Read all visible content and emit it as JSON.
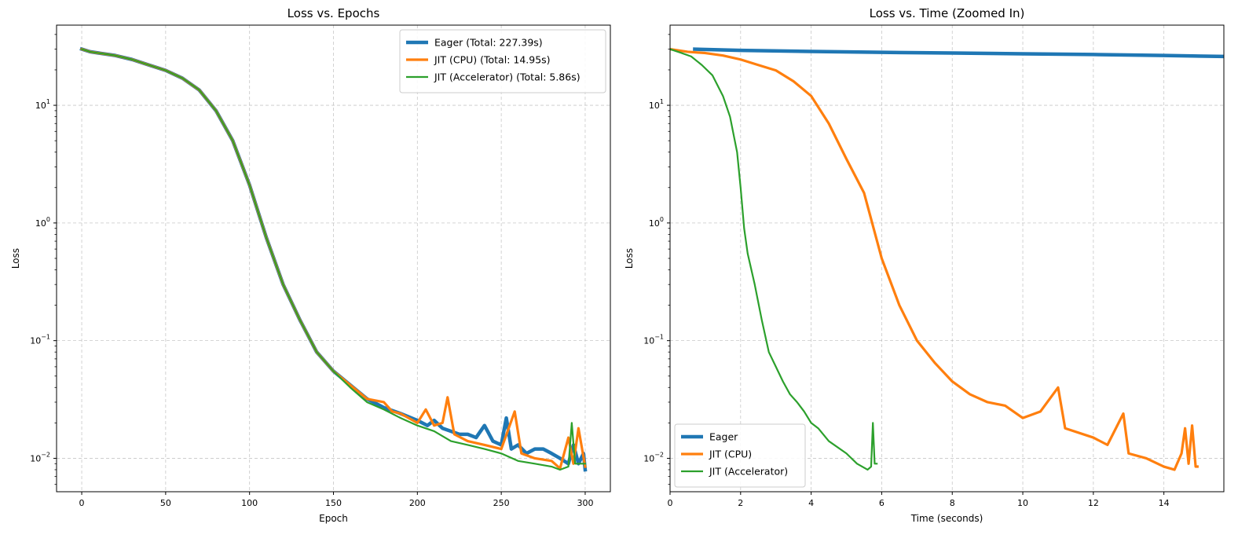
{
  "chart_data": [
    {
      "type": "line",
      "title": "Loss vs. Epochs",
      "xlabel": "Epoch",
      "ylabel": "Loss",
      "xscale": "linear",
      "yscale": "log",
      "xlim": [
        -15,
        315
      ],
      "ylim": [
        0.0052,
        48
      ],
      "xticks": [
        0,
        50,
        100,
        150,
        200,
        250,
        300
      ],
      "yticks": [
        {
          "value": 10,
          "base": "10",
          "exp": "1"
        },
        {
          "value": 1,
          "base": "10",
          "exp": "0"
        },
        {
          "value": 0.1,
          "base": "10",
          "exp": "−1"
        },
        {
          "value": 0.01,
          "base": "10",
          "exp": "−2"
        }
      ],
      "grid": true,
      "legend_position": "top-right",
      "series": [
        {
          "name": "Eager (Total: 227.39s)",
          "color": "#1f77b4",
          "line_width": 4.5,
          "points": [
            [
              0,
              30
            ],
            [
              5,
              28.5
            ],
            [
              10,
              27.8
            ],
            [
              20,
              26.5
            ],
            [
              30,
              24.5
            ],
            [
              40,
              22
            ],
            [
              50,
              19.8
            ],
            [
              60,
              17
            ],
            [
              70,
              13.5
            ],
            [
              80,
              9
            ],
            [
              90,
              5
            ],
            [
              100,
              2.1
            ],
            [
              110,
              0.75
            ],
            [
              120,
              0.3
            ],
            [
              130,
              0.15
            ],
            [
              140,
              0.08
            ],
            [
              150,
              0.055
            ],
            [
              160,
              0.042
            ],
            [
              170,
              0.032
            ],
            [
              180,
              0.027
            ],
            [
              190,
              0.024
            ],
            [
              200,
              0.021
            ],
            [
              206,
              0.019
            ],
            [
              210,
              0.021
            ],
            [
              215,
              0.018
            ],
            [
              220,
              0.017
            ],
            [
              225,
              0.016
            ],
            [
              230,
              0.016
            ],
            [
              235,
              0.015
            ],
            [
              240,
              0.019
            ],
            [
              245,
              0.014
            ],
            [
              250,
              0.013
            ],
            [
              253,
              0.022
            ],
            [
              256,
              0.012
            ],
            [
              260,
              0.013
            ],
            [
              265,
              0.011
            ],
            [
              270,
              0.012
            ],
            [
              275,
              0.012
            ],
            [
              280,
              0.011
            ],
            [
              285,
              0.01
            ],
            [
              290,
              0.009
            ],
            [
              293,
              0.013
            ],
            [
              296,
              0.009
            ],
            [
              299,
              0.011
            ],
            [
              300,
              0.008
            ]
          ]
        },
        {
          "name": "JIT (CPU) (Total: 14.95s)",
          "color": "#ff7f0e",
          "line_width": 3.2,
          "points": [
            [
              0,
              30
            ],
            [
              5,
              28.5
            ],
            [
              10,
              27.8
            ],
            [
              20,
              26.5
            ],
            [
              30,
              24.5
            ],
            [
              40,
              22
            ],
            [
              50,
              19.8
            ],
            [
              60,
              17
            ],
            [
              70,
              13.5
            ],
            [
              80,
              9
            ],
            [
              90,
              5
            ],
            [
              100,
              2.1
            ],
            [
              110,
              0.75
            ],
            [
              120,
              0.3
            ],
            [
              130,
              0.15
            ],
            [
              140,
              0.08
            ],
            [
              150,
              0.055
            ],
            [
              160,
              0.042
            ],
            [
              170,
              0.032
            ],
            [
              180,
              0.03
            ],
            [
              185,
              0.025
            ],
            [
              190,
              0.024
            ],
            [
              200,
              0.02
            ],
            [
              205,
              0.026
            ],
            [
              210,
              0.019
            ],
            [
              215,
              0.02
            ],
            [
              218,
              0.033
            ],
            [
              222,
              0.016
            ],
            [
              230,
              0.014
            ],
            [
              240,
              0.013
            ],
            [
              250,
              0.012
            ],
            [
              258,
              0.025
            ],
            [
              262,
              0.011
            ],
            [
              270,
              0.01
            ],
            [
              280,
              0.0095
            ],
            [
              285,
              0.0082
            ],
            [
              290,
              0.015
            ],
            [
              293,
              0.009
            ],
            [
              296,
              0.018
            ],
            [
              300,
              0.0085
            ]
          ]
        },
        {
          "name": "JIT (Accelerator) (Total: 5.86s)",
          "color": "#2ca02c",
          "line_width": 2.2,
          "points": [
            [
              0,
              30
            ],
            [
              5,
              28.5
            ],
            [
              10,
              27.8
            ],
            [
              20,
              26.5
            ],
            [
              30,
              24.5
            ],
            [
              40,
              22
            ],
            [
              50,
              19.8
            ],
            [
              60,
              17
            ],
            [
              70,
              13.5
            ],
            [
              80,
              9
            ],
            [
              90,
              5
            ],
            [
              100,
              2.1
            ],
            [
              110,
              0.75
            ],
            [
              120,
              0.3
            ],
            [
              130,
              0.15
            ],
            [
              140,
              0.08
            ],
            [
              150,
              0.055
            ],
            [
              160,
              0.04
            ],
            [
              170,
              0.03
            ],
            [
              180,
              0.026
            ],
            [
              190,
              0.022
            ],
            [
              200,
              0.019
            ],
            [
              210,
              0.017
            ],
            [
              220,
              0.014
            ],
            [
              230,
              0.013
            ],
            [
              240,
              0.012
            ],
            [
              250,
              0.011
            ],
            [
              260,
              0.0095
            ],
            [
              270,
              0.009
            ],
            [
              280,
              0.0085
            ],
            [
              285,
              0.008
            ],
            [
              290,
              0.0085
            ],
            [
              292,
              0.02
            ],
            [
              294,
              0.009
            ],
            [
              300,
              0.009
            ]
          ]
        }
      ]
    },
    {
      "type": "line",
      "title": "Loss vs. Time (Zoomed In)",
      "xlabel": "Time (seconds)",
      "ylabel": "Loss",
      "xscale": "linear",
      "yscale": "log",
      "xlim": [
        0,
        15.7
      ],
      "ylim": [
        0.0052,
        48
      ],
      "xticks": [
        0,
        2,
        4,
        6,
        8,
        10,
        12,
        14
      ],
      "yticks": [
        {
          "value": 10,
          "base": "10",
          "exp": "1"
        },
        {
          "value": 1,
          "base": "10",
          "exp": "0"
        },
        {
          "value": 0.1,
          "base": "10",
          "exp": "−1"
        },
        {
          "value": 0.01,
          "base": "10",
          "exp": "−2"
        }
      ],
      "grid": true,
      "legend_position": "lower-left",
      "series": [
        {
          "name": "Eager",
          "color": "#1f77b4",
          "line_width": 4.5,
          "points": [
            [
              0.7,
              30
            ],
            [
              2,
              29.3
            ],
            [
              4,
              28.7
            ],
            [
              6,
              28.2
            ],
            [
              8,
              27.8
            ],
            [
              10,
              27.4
            ],
            [
              12,
              27
            ],
            [
              14,
              26.5
            ],
            [
              15.7,
              26
            ]
          ]
        },
        {
          "name": "JIT (CPU)",
          "color": "#ff7f0e",
          "line_width": 3.2,
          "points": [
            [
              0,
              30
            ],
            [
              0.5,
              28.5
            ],
            [
              1,
              27.8
            ],
            [
              1.5,
              26.5
            ],
            [
              2,
              24.5
            ],
            [
              2.5,
              22
            ],
            [
              3,
              19.8
            ],
            [
              3.5,
              16
            ],
            [
              4,
              12
            ],
            [
              4.5,
              7
            ],
            [
              5,
              3.5
            ],
            [
              5.5,
              1.8
            ],
            [
              6,
              0.5
            ],
            [
              6.5,
              0.2
            ],
            [
              7,
              0.1
            ],
            [
              7.5,
              0.065
            ],
            [
              8,
              0.045
            ],
            [
              8.5,
              0.035
            ],
            [
              9,
              0.03
            ],
            [
              9.5,
              0.028
            ],
            [
              10,
              0.022
            ],
            [
              10.5,
              0.025
            ],
            [
              11,
              0.04
            ],
            [
              11.2,
              0.018
            ],
            [
              12,
              0.015
            ],
            [
              12.4,
              0.013
            ],
            [
              12.85,
              0.024
            ],
            [
              13,
              0.011
            ],
            [
              13.5,
              0.01
            ],
            [
              14,
              0.0085
            ],
            [
              14.3,
              0.008
            ],
            [
              14.5,
              0.011
            ],
            [
              14.6,
              0.018
            ],
            [
              14.7,
              0.009
            ],
            [
              14.8,
              0.019
            ],
            [
              14.9,
              0.0085
            ],
            [
              14.95,
              0.0085
            ]
          ]
        },
        {
          "name": "JIT (Accelerator)",
          "color": "#2ca02c",
          "line_width": 2.2,
          "points": [
            [
              0,
              30
            ],
            [
              0.3,
              28
            ],
            [
              0.6,
              26
            ],
            [
              0.9,
              22
            ],
            [
              1.2,
              18
            ],
            [
              1.5,
              12
            ],
            [
              1.7,
              8
            ],
            [
              1.9,
              4
            ],
            [
              2,
              2
            ],
            [
              2.1,
              0.9
            ],
            [
              2.2,
              0.55
            ],
            [
              2.4,
              0.3
            ],
            [
              2.6,
              0.15
            ],
            [
              2.8,
              0.08
            ],
            [
              3,
              0.06
            ],
            [
              3.2,
              0.045
            ],
            [
              3.4,
              0.035
            ],
            [
              3.6,
              0.03
            ],
            [
              3.8,
              0.025
            ],
            [
              4,
              0.02
            ],
            [
              4.2,
              0.018
            ],
            [
              4.5,
              0.014
            ],
            [
              5,
              0.011
            ],
            [
              5.3,
              0.009
            ],
            [
              5.6,
              0.008
            ],
            [
              5.7,
              0.0085
            ],
            [
              5.75,
              0.02
            ],
            [
              5.8,
              0.009
            ],
            [
              5.86,
              0.009
            ]
          ]
        }
      ]
    }
  ]
}
